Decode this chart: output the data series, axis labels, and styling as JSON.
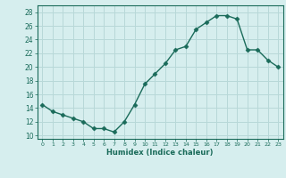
{
  "x": [
    0,
    1,
    2,
    3,
    4,
    5,
    6,
    7,
    8,
    9,
    10,
    11,
    12,
    13,
    14,
    15,
    16,
    17,
    18,
    19,
    20,
    21,
    22,
    23
  ],
  "y": [
    14.5,
    13.5,
    13.0,
    12.5,
    12.0,
    11.0,
    11.0,
    10.5,
    12.0,
    14.5,
    17.5,
    19.0,
    20.5,
    22.5,
    23.0,
    25.5,
    26.5,
    27.5,
    27.5,
    27.0,
    22.5,
    22.5,
    21.0,
    20.0
  ],
  "line_color": "#1a6b5a",
  "marker": "D",
  "markersize": 2.5,
  "bg_color": "#d6eeee",
  "grid_color": "#b8d8d8",
  "xlabel": "Humidex (Indice chaleur)",
  "ylabel_ticks": [
    10,
    12,
    14,
    16,
    18,
    20,
    22,
    24,
    26,
    28
  ],
  "ylim": [
    9.5,
    29.0
  ],
  "xlim": [
    -0.5,
    23.5
  ]
}
